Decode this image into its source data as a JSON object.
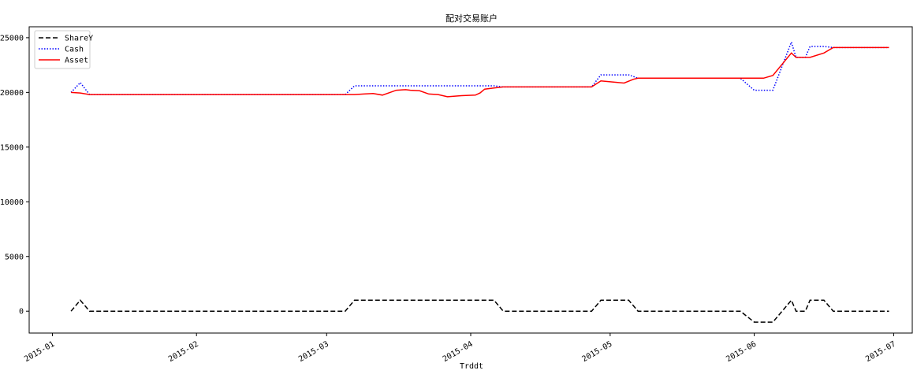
{
  "chart_data": {
    "type": "line",
    "title": "配对交易账户",
    "xlabel": "Trddt",
    "ylabel": "",
    "xlim": [
      "2014-12-27",
      "2015-07-05"
    ],
    "ylim": [
      -2000,
      26000
    ],
    "grid": false,
    "legend_position": "top-left",
    "x_ticks": [
      "2015-01",
      "2015-02",
      "2015-03",
      "2015-04",
      "2015-05",
      "2015-06",
      "2015-07"
    ],
    "y_ticks": [
      "0",
      "5000",
      "10000",
      "15000",
      "20000",
      "25000"
    ],
    "y_tick_values": [
      0,
      5000,
      10000,
      15000,
      20000,
      25000
    ],
    "series": [
      {
        "name": "ShareY",
        "color": "#000000",
        "style": "dashed",
        "points": [
          [
            "2015-01-05",
            0
          ],
          [
            "2015-01-07",
            1000
          ],
          [
            "2015-01-09",
            0
          ],
          [
            "2015-03-05",
            0
          ],
          [
            "2015-03-07",
            1000
          ],
          [
            "2015-04-06",
            1000
          ],
          [
            "2015-04-08",
            0
          ],
          [
            "2015-04-27",
            0
          ],
          [
            "2015-04-29",
            1000
          ],
          [
            "2015-05-05",
            1000
          ],
          [
            "2015-05-07",
            0
          ],
          [
            "2015-05-29",
            0
          ],
          [
            "2015-06-01",
            -1000
          ],
          [
            "2015-06-05",
            -1000
          ],
          [
            "2015-06-09",
            1000
          ],
          [
            "2015-06-10",
            0
          ],
          [
            "2015-06-12",
            0
          ],
          [
            "2015-06-13",
            1000
          ],
          [
            "2015-06-16",
            1000
          ],
          [
            "2015-06-18",
            0
          ],
          [
            "2015-06-30",
            0
          ]
        ]
      },
      {
        "name": "Cash",
        "color": "#0000ff",
        "style": "dotted",
        "points": [
          [
            "2015-01-05",
            20000
          ],
          [
            "2015-01-07",
            20900
          ],
          [
            "2015-01-09",
            19800
          ],
          [
            "2015-03-05",
            19800
          ],
          [
            "2015-03-07",
            20600
          ],
          [
            "2015-04-06",
            20600
          ],
          [
            "2015-04-08",
            20500
          ],
          [
            "2015-04-27",
            20500
          ],
          [
            "2015-04-29",
            21600
          ],
          [
            "2015-05-05",
            21600
          ],
          [
            "2015-05-07",
            21300
          ],
          [
            "2015-05-29",
            21300
          ],
          [
            "2015-06-01",
            20200
          ],
          [
            "2015-06-05",
            20200
          ],
          [
            "2015-06-09",
            24600
          ],
          [
            "2015-06-10",
            23200
          ],
          [
            "2015-06-12",
            23200
          ],
          [
            "2015-06-13",
            24200
          ],
          [
            "2015-06-16",
            24200
          ],
          [
            "2015-06-18",
            24100
          ],
          [
            "2015-06-30",
            24100
          ]
        ]
      },
      {
        "name": "Asset",
        "color": "#ff0000",
        "style": "solid",
        "points": [
          [
            "2015-01-05",
            20000
          ],
          [
            "2015-01-07",
            19950
          ],
          [
            "2015-01-09",
            19800
          ],
          [
            "2015-03-05",
            19800
          ],
          [
            "2015-03-07",
            19800
          ],
          [
            "2015-03-09",
            19850
          ],
          [
            "2015-03-11",
            19900
          ],
          [
            "2015-03-13",
            19750
          ],
          [
            "2015-03-16",
            20200
          ],
          [
            "2015-03-18",
            20250
          ],
          [
            "2015-03-19",
            20200
          ],
          [
            "2015-03-21",
            20150
          ],
          [
            "2015-03-23",
            19850
          ],
          [
            "2015-03-25",
            19800
          ],
          [
            "2015-03-27",
            19600
          ],
          [
            "2015-03-30",
            19700
          ],
          [
            "2015-04-02",
            19750
          ],
          [
            "2015-04-03",
            19950
          ],
          [
            "2015-04-04",
            20300
          ],
          [
            "2015-04-06",
            20400
          ],
          [
            "2015-04-08",
            20500
          ],
          [
            "2015-04-27",
            20500
          ],
          [
            "2015-04-29",
            21050
          ],
          [
            "2015-05-04",
            20850
          ],
          [
            "2015-05-06",
            21200
          ],
          [
            "2015-05-07",
            21300
          ],
          [
            "2015-05-29",
            21300
          ],
          [
            "2015-06-03",
            21300
          ],
          [
            "2015-06-05",
            21550
          ],
          [
            "2015-06-09",
            23600
          ],
          [
            "2015-06-10",
            23200
          ],
          [
            "2015-06-13",
            23200
          ],
          [
            "2015-06-16",
            23600
          ],
          [
            "2015-06-18",
            24100
          ],
          [
            "2015-06-30",
            24100
          ]
        ]
      }
    ]
  }
}
